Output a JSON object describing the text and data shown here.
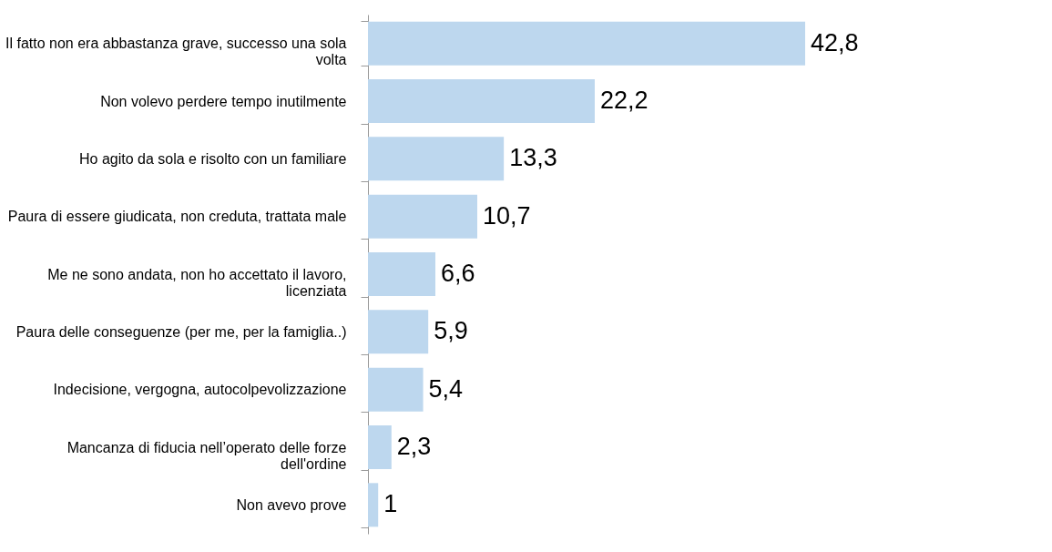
{
  "chart_data": {
    "type": "bar",
    "orientation": "horizontal",
    "categories": [
      "Il fatto non era abbastanza grave, successo una sola volta",
      "Non volevo perdere tempo inutilmente",
      "Ho agito da sola e risolto con un familiare",
      "Paura di essere giudicata, non creduta, trattata male",
      "Me ne sono andata, non ho accettato il lavoro, licenziata",
      "Paura delle conseguenze (per me, per la famiglia..)",
      "Indecisione, vergogna, autocolpevolizzazione",
      "Mancanza di fiducia nell’operato delle forze dell'ordine",
      "Non avevo prove"
    ],
    "values": [
      42.8,
      22.2,
      13.3,
      10.7,
      6.6,
      5.9,
      5.4,
      2.3,
      1
    ],
    "value_labels": [
      "42,8",
      "22,2",
      "13,3",
      "10,7",
      "6,6",
      "5,9",
      "5,4",
      "2,3",
      "1"
    ],
    "color": "#bdd7ee",
    "tick_labels": "y",
    "grid": false
  }
}
